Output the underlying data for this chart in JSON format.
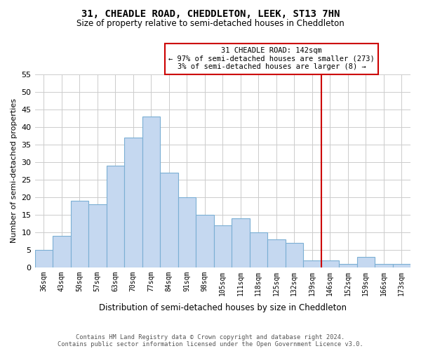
{
  "title": "31, CHEADLE ROAD, CHEDDLETON, LEEK, ST13 7HN",
  "subtitle": "Size of property relative to semi-detached houses in Cheddleton",
  "xlabel": "Distribution of semi-detached houses by size in Cheddleton",
  "ylabel": "Number of semi-detached properties",
  "bar_labels": [
    "36sqm",
    "43sqm",
    "50sqm",
    "57sqm",
    "63sqm",
    "70sqm",
    "77sqm",
    "84sqm",
    "91sqm",
    "98sqm",
    "105sqm",
    "111sqm",
    "118sqm",
    "125sqm",
    "132sqm",
    "139sqm",
    "146sqm",
    "152sqm",
    "159sqm",
    "166sqm",
    "173sqm"
  ],
  "bar_values": [
    5,
    9,
    19,
    18,
    29,
    37,
    43,
    27,
    20,
    15,
    12,
    14,
    10,
    8,
    7,
    2,
    2,
    1,
    3,
    1,
    1
  ],
  "bar_color": "#c5d8f0",
  "bar_edge_color": "#7bafd4",
  "ylim": [
    0,
    55
  ],
  "yticks": [
    0,
    5,
    10,
    15,
    20,
    25,
    30,
    35,
    40,
    45,
    50,
    55
  ],
  "vline_index": 15,
  "vline_color": "#cc0000",
  "annotation_title": "31 CHEADLE ROAD: 142sqm",
  "annotation_line1": "← 97% of semi-detached houses are smaller (273)",
  "annotation_line2": "3% of semi-detached houses are larger (8) →",
  "annotation_box_color": "#ffffff",
  "annotation_box_edge": "#cc0000",
  "footer_line1": "Contains HM Land Registry data © Crown copyright and database right 2024.",
  "footer_line2": "Contains public sector information licensed under the Open Government Licence v3.0.",
  "background_color": "#ffffff",
  "grid_color": "#cccccc"
}
